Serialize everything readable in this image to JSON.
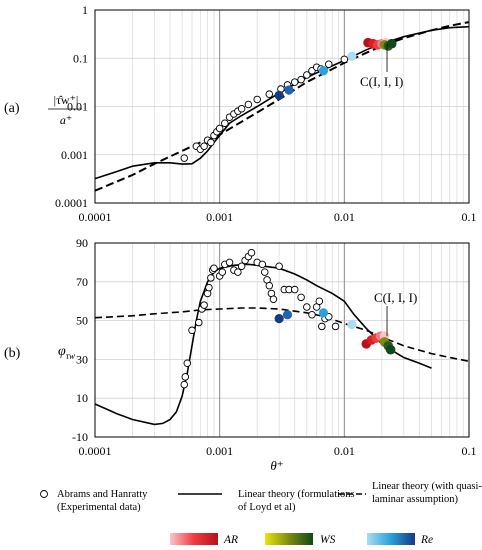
{
  "panel_labels": {
    "a": "(a)",
    "b": "(b)"
  },
  "annotations": {
    "label_a": "C(I, I, I)",
    "label_b": "C(I, I, I)"
  },
  "xlabel": "θ⁺",
  "ylabel_a": {
    "num": "|τ̂w⁺|",
    "den": "a⁺"
  },
  "ylabel_b": {
    "main": "φ",
    "sub": "τw"
  },
  "legend": {
    "open_circle": [
      "Abrams and Hanratty",
      "(Experimental data)"
    ],
    "solid_line": [
      "Linear theory (formulations",
      "of Loyd et al)"
    ],
    "dashed_line": [
      "Linear theory (with quasi-",
      "laminar assumption)"
    ],
    "gradients": [
      {
        "label": "AR",
        "colors": [
          "#f7c6c8",
          "#f03a40",
          "#b5121b"
        ]
      },
      {
        "label": "WS",
        "colors": [
          "#e9e60a",
          "#7d8a12",
          "#0f4a1a"
        ]
      },
      {
        "label": "Re",
        "colors": [
          "#a8ddf2",
          "#2a9fd8",
          "#153a86"
        ]
      }
    ]
  },
  "chart_data": [
    {
      "type": "scatter",
      "xscale": "log",
      "yscale": "log",
      "xlim": [
        0.0001,
        0.1
      ],
      "ylim": [
        0.0001,
        1
      ],
      "xticks": [
        "0.0001",
        "0.001",
        "0.01",
        "0.1"
      ],
      "yticks": [
        "1",
        "0.1",
        "0.01",
        "0.001",
        "0.0001"
      ],
      "grid": true,
      "experimental": [
        [
          0.00052,
          0.00085
        ],
        [
          0.00065,
          0.0015
        ],
        [
          0.0007,
          0.0013
        ],
        [
          0.00075,
          0.0015
        ],
        [
          0.0008,
          0.002
        ],
        [
          0.00085,
          0.0018
        ],
        [
          0.0009,
          0.0025
        ],
        [
          0.00095,
          0.003
        ],
        [
          0.001,
          0.0035
        ],
        [
          0.0011,
          0.0045
        ],
        [
          0.0012,
          0.006
        ],
        [
          0.0013,
          0.007
        ],
        [
          0.0014,
          0.008
        ],
        [
          0.0015,
          0.009
        ],
        [
          0.0017,
          0.011
        ],
        [
          0.002,
          0.014
        ],
        [
          0.0025,
          0.018
        ],
        [
          0.0031,
          0.023
        ],
        [
          0.0035,
          0.028
        ],
        [
          0.004,
          0.032
        ],
        [
          0.0045,
          0.036
        ],
        [
          0.005,
          0.045
        ],
        [
          0.0055,
          0.055
        ],
        [
          0.006,
          0.065
        ],
        [
          0.0065,
          0.06
        ],
        [
          0.0075,
          0.075
        ],
        [
          0.01,
          0.095
        ]
      ],
      "linear_theory": [
        [
          0.0001,
          0.00032
        ],
        [
          0.00015,
          0.00045
        ],
        [
          0.0002,
          0.00058
        ],
        [
          0.0003,
          0.00068
        ],
        [
          0.0004,
          0.00068
        ],
        [
          0.0005,
          0.00064
        ],
        [
          0.0006,
          0.00065
        ],
        [
          0.0007,
          0.00085
        ],
        [
          0.0008,
          0.0012
        ],
        [
          0.0009,
          0.0018
        ],
        [
          0.001,
          0.0025
        ],
        [
          0.0012,
          0.0045
        ],
        [
          0.0015,
          0.0065
        ],
        [
          0.002,
          0.01
        ],
        [
          0.003,
          0.019
        ],
        [
          0.005,
          0.04
        ],
        [
          0.007,
          0.06
        ],
        [
          0.01,
          0.09
        ],
        [
          0.015,
          0.15
        ],
        [
          0.02,
          0.2
        ],
        [
          0.03,
          0.28
        ],
        [
          0.05,
          0.38
        ],
        [
          0.07,
          0.43
        ],
        [
          0.1,
          0.45
        ]
      ],
      "quasi_laminar": [
        [
          0.0001,
          0.00018
        ],
        [
          0.0002,
          0.00038
        ],
        [
          0.0003,
          0.00065
        ],
        [
          0.0005,
          0.0012
        ],
        [
          0.0007,
          0.0018
        ],
        [
          0.001,
          0.0026
        ],
        [
          0.002,
          0.0075
        ],
        [
          0.003,
          0.014
        ],
        [
          0.005,
          0.032
        ],
        [
          0.007,
          0.05
        ],
        [
          0.01,
          0.08
        ],
        [
          0.015,
          0.13
        ],
        [
          0.02,
          0.18
        ],
        [
          0.03,
          0.26
        ],
        [
          0.05,
          0.38
        ],
        [
          0.07,
          0.47
        ],
        [
          0.1,
          0.56
        ]
      ],
      "ar_points": [
        [
          0.0155,
          0.21
        ],
        [
          0.017,
          0.2
        ],
        [
          0.0185,
          0.19
        ],
        [
          0.02,
          0.2
        ],
        [
          0.0215,
          0.21
        ]
      ],
      "ws_points": [
        [
          0.021,
          0.19
        ],
        [
          0.0225,
          0.18
        ],
        [
          0.024,
          0.2
        ]
      ],
      "re_points": [
        [
          0.003,
          0.017
        ],
        [
          0.0036,
          0.022
        ],
        [
          0.0068,
          0.055
        ],
        [
          0.0115,
          0.11
        ]
      ]
    },
    {
      "type": "scatter",
      "xscale": "log",
      "xlim": [
        0.0001,
        0.1
      ],
      "ylim": [
        -10,
        90
      ],
      "xticks": [
        "0.0001",
        "0.001",
        "0.01",
        "0.1"
      ],
      "yticks": [
        "90",
        "70",
        "50",
        "30",
        "10",
        "-10"
      ],
      "grid": true,
      "experimental": [
        [
          0.00052,
          17
        ],
        [
          0.00053,
          21
        ],
        [
          0.00055,
          28
        ],
        [
          0.0006,
          45
        ],
        [
          0.00068,
          49
        ],
        [
          0.00072,
          56
        ],
        [
          0.00075,
          58
        ],
        [
          0.0008,
          64
        ],
        [
          0.00082,
          67
        ],
        [
          0.00085,
          72
        ],
        [
          0.00088,
          76
        ],
        [
          0.0009,
          77
        ],
        [
          0.001,
          73
        ],
        [
          0.00105,
          75
        ],
        [
          0.0011,
          79
        ],
        [
          0.0012,
          80
        ],
        [
          0.0013,
          76
        ],
        [
          0.0014,
          75
        ],
        [
          0.0015,
          78
        ],
        [
          0.0016,
          81
        ],
        [
          0.0017,
          83
        ],
        [
          0.0018,
          85
        ],
        [
          0.002,
          80
        ],
        [
          0.0022,
          79
        ],
        [
          0.0023,
          75
        ],
        [
          0.0024,
          71
        ],
        [
          0.0025,
          68
        ],
        [
          0.0026,
          64
        ],
        [
          0.0027,
          61
        ],
        [
          0.003,
          78
        ],
        [
          0.0033,
          66
        ],
        [
          0.0036,
          66
        ],
        [
          0.004,
          66
        ],
        [
          0.0045,
          62
        ],
        [
          0.005,
          57
        ],
        [
          0.0055,
          53
        ],
        [
          0.006,
          57
        ],
        [
          0.0063,
          60
        ],
        [
          0.0066,
          47
        ],
        [
          0.007,
          51
        ],
        [
          0.0075,
          52
        ],
        [
          0.0085,
          47
        ]
      ],
      "linear_theory": [
        [
          0.0001,
          7
        ],
        [
          0.00015,
          2
        ],
        [
          0.0002,
          -1
        ],
        [
          0.0003,
          -3.5
        ],
        [
          0.00035,
          -3
        ],
        [
          0.0004,
          -1
        ],
        [
          0.00045,
          3
        ],
        [
          0.0005,
          11
        ],
        [
          0.00055,
          23
        ],
        [
          0.0006,
          37
        ],
        [
          0.00065,
          50
        ],
        [
          0.0007,
          60
        ],
        [
          0.0008,
          70
        ],
        [
          0.0009,
          75
        ],
        [
          0.001,
          77
        ],
        [
          0.0013,
          78.5
        ],
        [
          0.0017,
          79
        ],
        [
          0.002,
          78.5
        ],
        [
          0.003,
          77
        ],
        [
          0.004,
          74
        ],
        [
          0.005,
          71
        ],
        [
          0.006,
          68
        ],
        [
          0.008,
          64
        ],
        [
          0.01,
          60
        ],
        [
          0.012,
          53
        ],
        [
          0.015,
          46
        ],
        [
          0.02,
          38
        ],
        [
          0.025,
          34
        ],
        [
          0.03,
          31
        ],
        [
          0.04,
          28
        ],
        [
          0.05,
          25.5
        ]
      ],
      "quasi_laminar": [
        [
          0.0001,
          51.5
        ],
        [
          0.0002,
          52.5
        ],
        [
          0.0003,
          53.5
        ],
        [
          0.0005,
          54.5
        ],
        [
          0.0007,
          55.5
        ],
        [
          0.001,
          56
        ],
        [
          0.0015,
          56.5
        ],
        [
          0.002,
          56.5
        ],
        [
          0.003,
          56
        ],
        [
          0.005,
          54
        ],
        [
          0.007,
          52
        ],
        [
          0.01,
          48.5
        ],
        [
          0.015,
          45
        ],
        [
          0.02,
          41.5
        ],
        [
          0.03,
          37
        ],
        [
          0.05,
          33
        ],
        [
          0.07,
          31
        ],
        [
          0.1,
          29
        ]
      ],
      "ar_points": [
        [
          0.015,
          38
        ],
        [
          0.0165,
          40
        ],
        [
          0.018,
          41
        ],
        [
          0.0195,
          42
        ],
        [
          0.021,
          42
        ]
      ],
      "ws_points": [
        [
          0.021,
          39
        ],
        [
          0.0225,
          37
        ],
        [
          0.0235,
          35
        ]
      ],
      "re_points": [
        [
          0.003,
          51
        ],
        [
          0.0035,
          53
        ],
        [
          0.0068,
          54
        ],
        [
          0.0115,
          48
        ]
      ]
    }
  ]
}
